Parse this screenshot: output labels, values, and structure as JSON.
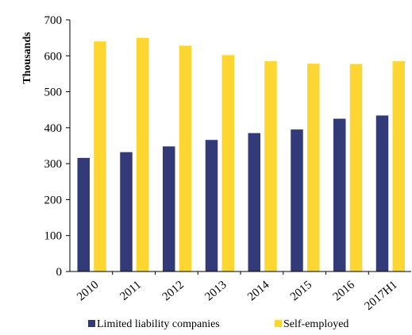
{
  "chart_data": {
    "type": "bar",
    "title": "",
    "xlabel": "",
    "ylabel": "Thousands",
    "ylim": [
      0,
      700
    ],
    "yticks": [
      0,
      100,
      200,
      300,
      400,
      500,
      600,
      700
    ],
    "categories": [
      "2010",
      "2011",
      "2012",
      "2013",
      "2014",
      "2015",
      "2016",
      "2017H1"
    ],
    "series": [
      {
        "name": "Limited liability companies",
        "color": "#333a78",
        "values": [
          316,
          332,
          348,
          366,
          385,
          395,
          425,
          434
        ]
      },
      {
        "name": "Self-employed",
        "color": "#fdd632",
        "values": [
          640,
          650,
          628,
          602,
          585,
          578,
          577,
          585
        ]
      }
    ],
    "grid": false,
    "legend_position": "bottom"
  }
}
